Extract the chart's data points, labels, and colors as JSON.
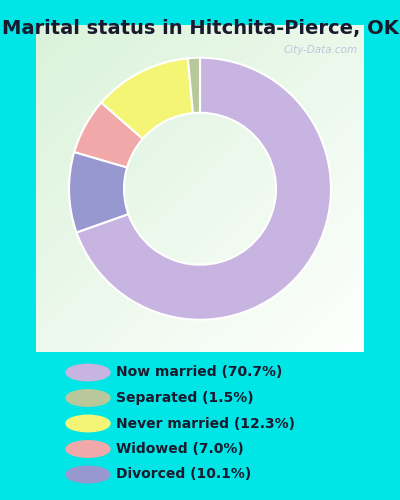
{
  "title": "Marital status in Hitchita-Pierce, OK",
  "pie_order": [
    "Now married",
    "Divorced",
    "Widowed",
    "Never married",
    "Separated"
  ],
  "values": [
    70.7,
    10.1,
    7.0,
    12.3,
    1.5
  ],
  "colors": [
    "#c8b4e0",
    "#9898d0",
    "#f0a8a8",
    "#f5f575",
    "#b8c89a"
  ],
  "legend_labels": [
    "Now married (70.7%)",
    "Separated (1.5%)",
    "Never married (12.3%)",
    "Widowed (7.0%)",
    "Divorced (10.1%)"
  ],
  "legend_colors": [
    "#c8b4e0",
    "#b8c89a",
    "#f5f575",
    "#f0a8a8",
    "#9898d0"
  ],
  "background_color_outer": "#00e5e5",
  "title_fontsize": 14,
  "title_color": "#1a1a2e",
  "watermark": "City-Data.com",
  "start_angle": 90
}
